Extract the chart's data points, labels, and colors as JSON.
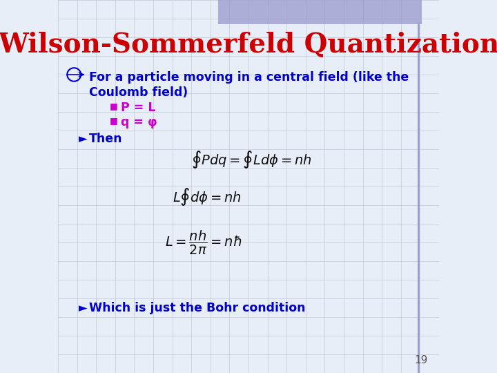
{
  "title": "Wilson-Sommerfeld Quantization",
  "title_color": "#CC0000",
  "title_fontsize": 28,
  "background_color": "#E8EEF8",
  "grid_color": "#C0C8D8",
  "text_color_blue": "#0000CC",
  "text_color_magenta": "#CC00CC",
  "text_color_dark": "#111111",
  "bullet_symbol": "■",
  "arrow_symbol": "►",
  "bullet1_text": "P = L",
  "bullet2_text": "q = φ",
  "line1_text": "For a particle moving in a central field (like the",
  "line2_text": "Coulomb field)",
  "then_text": "Then",
  "conclusion_text": "Which is just the Bohr condition",
  "page_number": "19",
  "top_bar_color": "#9999CC"
}
